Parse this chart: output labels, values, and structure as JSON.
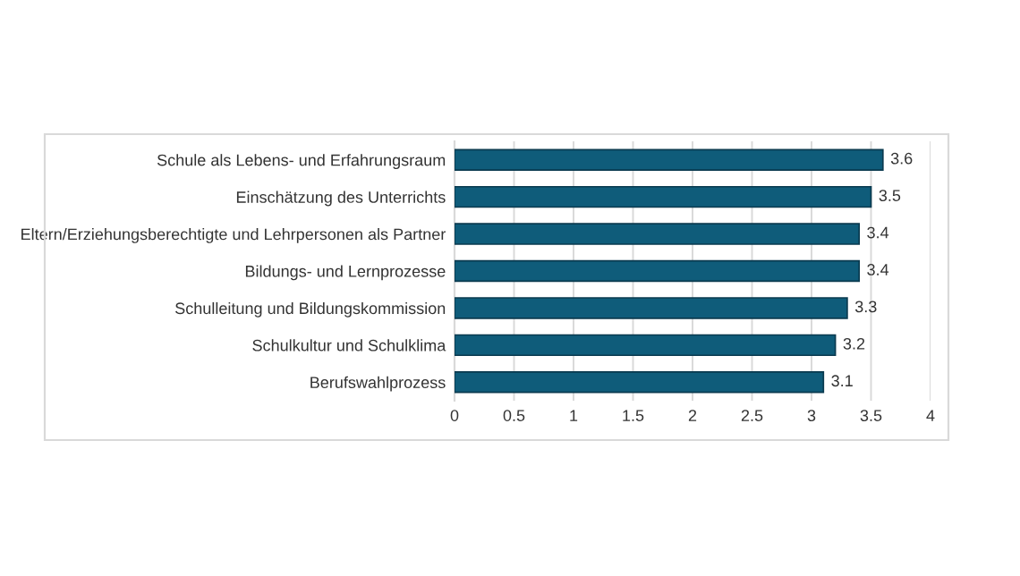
{
  "chart_data": {
    "type": "bar",
    "orientation": "horizontal",
    "categories": [
      "Schule als Lebens- und Erfahrungsraum",
      "Einschätzung des Unterrichts",
      "Eltern/Erziehungsberechtigte und Lehrpersonen als Partner",
      "Bildungs- und Lernprozesse",
      "Schulleitung und Bildungskommission",
      "Schulkultur und Schulklima",
      "Berufswahlprozess"
    ],
    "values": [
      3.6,
      3.5,
      3.4,
      3.4,
      3.3,
      3.2,
      3.1
    ],
    "color": "#0f5c7a",
    "xlim": [
      0,
      4
    ],
    "xticks": [
      0,
      0.5,
      1,
      1.5,
      2,
      2.5,
      3,
      3.5,
      4
    ],
    "grid": "x",
    "data_labels": true,
    "legend": false
  }
}
